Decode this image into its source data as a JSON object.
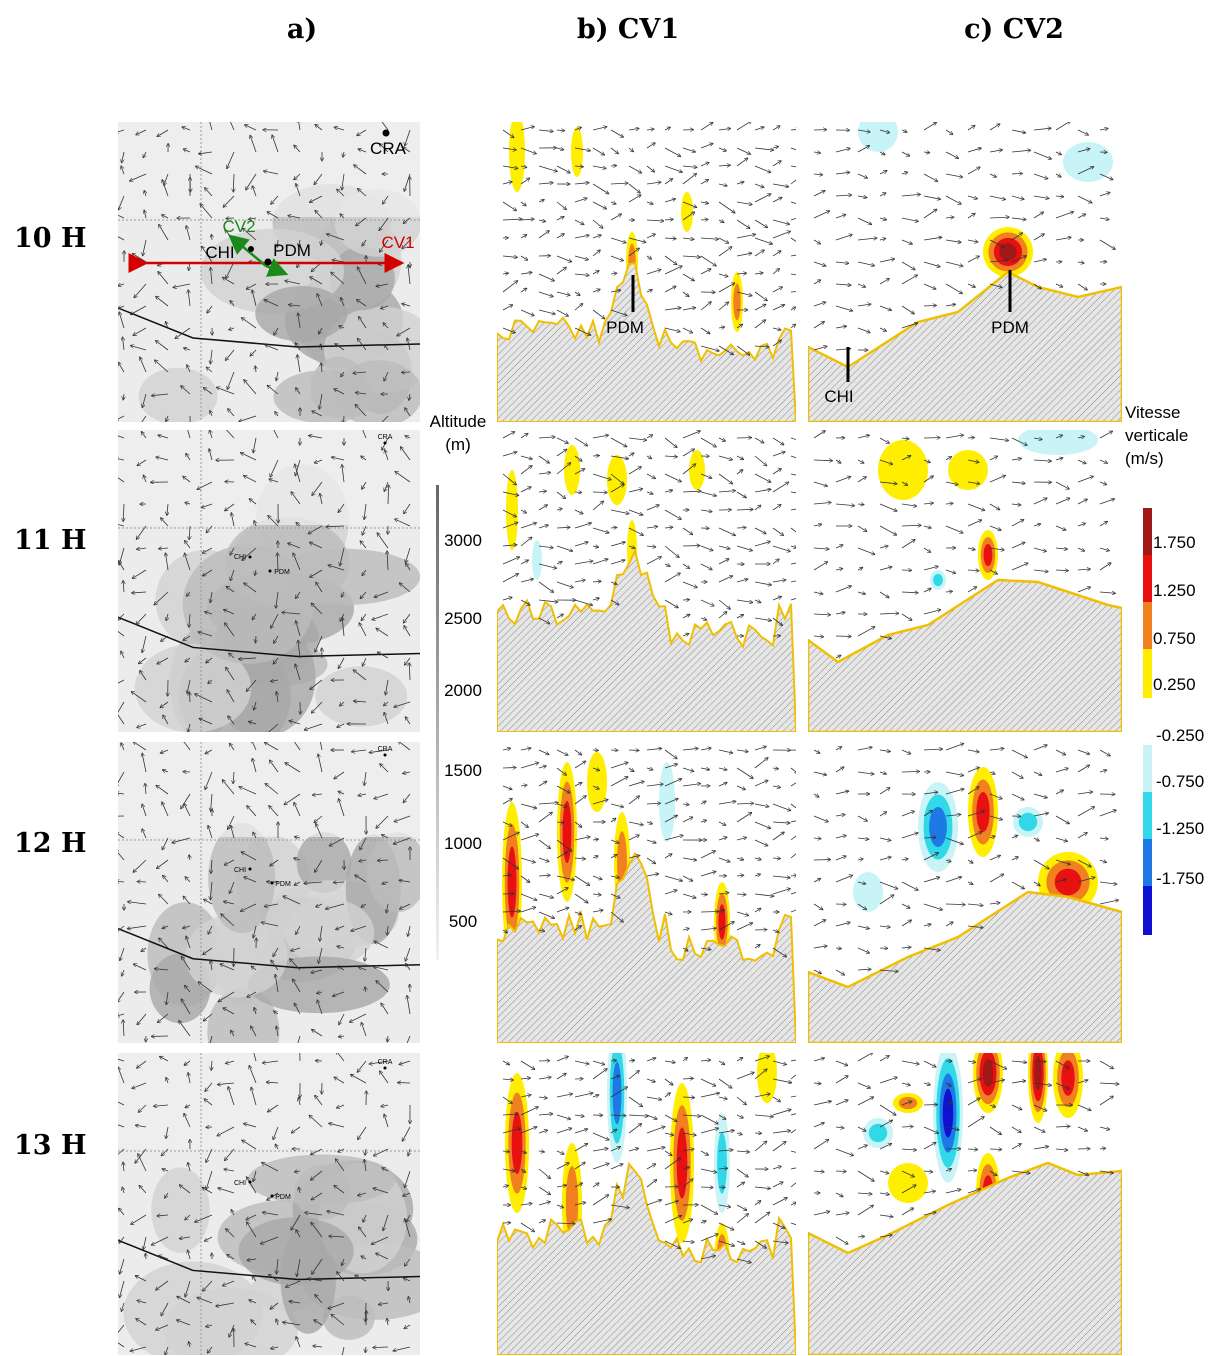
{
  "columns": [
    "a)",
    "b) CV1",
    "c) CV2"
  ],
  "rows": [
    "10 H",
    "11 H",
    "12 H",
    "13 H"
  ],
  "map_labels": {
    "cra": "CRA",
    "cv2": "CV2",
    "chi": "CHI",
    "pdm": "PDM",
    "cv1": "CV1"
  },
  "section_labels": {
    "pdm": "PDM",
    "chi": "CHI"
  },
  "altitude": {
    "title": "Altitude",
    "unit": "(m)",
    "ticks": [
      3000,
      2500,
      2000,
      1500,
      1000,
      500
    ]
  },
  "colorbar": {
    "title": [
      "Vitesse",
      "verticale",
      "(m/s)"
    ],
    "ticks": [
      "1.750",
      "1.250",
      "0.750",
      "0.250",
      "-0.250",
      "-0.750",
      "-1.250",
      "-1.750"
    ]
  }
}
